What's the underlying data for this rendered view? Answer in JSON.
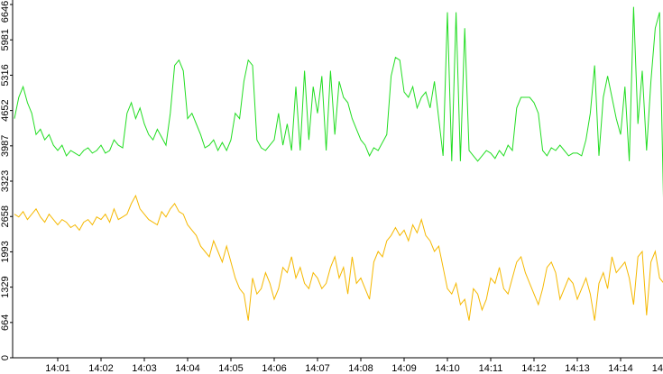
{
  "chart_data": {
    "type": "line",
    "x": [
      0,
      0.1,
      0.2,
      0.3,
      0.4,
      0.5,
      0.6,
      0.7,
      0.8,
      0.9,
      1,
      1.1,
      1.2,
      1.3,
      1.4,
      1.5,
      1.6,
      1.7,
      1.8,
      1.9,
      2,
      2.1,
      2.2,
      2.3,
      2.4,
      2.5,
      2.6,
      2.7,
      2.8,
      2.9,
      3,
      3.1,
      3.2,
      3.3,
      3.4,
      3.5,
      3.6,
      3.7,
      3.8,
      3.9,
      4,
      4.1,
      4.2,
      4.3,
      4.4,
      4.5,
      4.6,
      4.7,
      4.8,
      4.9,
      5,
      5.1,
      5.2,
      5.3,
      5.4,
      5.5,
      5.6,
      5.7,
      5.8,
      5.9,
      6,
      6.1,
      6.2,
      6.3,
      6.4,
      6.5,
      6.6,
      6.7,
      6.8,
      6.9,
      7,
      7.1,
      7.2,
      7.3,
      7.4,
      7.5,
      7.6,
      7.7,
      7.8,
      7.9,
      8,
      8.1,
      8.2,
      8.3,
      8.4,
      8.5,
      8.6,
      8.7,
      8.8,
      8.9,
      9,
      9.1,
      9.2,
      9.3,
      9.4,
      9.5,
      9.6,
      9.7,
      9.8,
      9.9,
      10,
      10.1,
      10.2,
      10.3,
      10.4,
      10.5,
      10.6,
      10.7,
      10.8,
      10.9,
      11,
      11.1,
      11.2,
      11.3,
      11.4,
      11.5,
      11.6,
      11.7,
      11.8,
      11.9,
      12,
      12.1,
      12.2,
      12.3,
      12.4,
      12.5,
      12.6,
      12.7,
      12.8,
      12.9,
      13,
      13.1,
      13.2,
      13.3,
      13.4,
      13.5,
      13.6,
      13.7,
      13.8,
      13.9,
      14,
      14.1,
      14.2,
      14.3,
      14.4,
      14.5,
      14.6,
      14.7,
      14.8,
      14.9,
      15
    ],
    "series": [
      {
        "color": "#22dd22",
        "values": [
          4500,
          4900,
          5100,
          4800,
          4600,
          4200,
          4300,
          4100,
          4200,
          4000,
          3900,
          4000,
          3800,
          3900,
          3850,
          3800,
          3900,
          3950,
          3850,
          3900,
          4000,
          3850,
          3900,
          4100,
          4000,
          3950,
          4600,
          4800,
          4500,
          4700,
          4400,
          4200,
          4100,
          4300,
          4150,
          4000,
          4600,
          5500,
          5600,
          5400,
          4500,
          4600,
          4400,
          4200,
          3950,
          4000,
          4100,
          3900,
          4050,
          3900,
          4100,
          4600,
          4500,
          5200,
          5600,
          5500,
          4100,
          3950,
          3900,
          4000,
          4100,
          4600,
          4000,
          4400,
          3900,
          5100,
          3900,
          5400,
          4100,
          5100,
          4600,
          5300,
          3900,
          5400,
          4200,
          5200,
          4900,
          4800,
          4500,
          4300,
          4100,
          4000,
          3800,
          3950,
          3900,
          4050,
          4200,
          5300,
          5650,
          5600,
          5000,
          4900,
          5100,
          4700,
          4900,
          5000,
          4700,
          5200,
          4500,
          3800,
          6500,
          3700,
          6500,
          3700,
          6200,
          3900,
          3800,
          3700,
          3800,
          3900,
          3850,
          3750,
          3900,
          3800,
          4000,
          3900,
          4700,
          4900,
          4900,
          4900,
          4800,
          4600,
          3900,
          3800,
          3950,
          3900,
          4000,
          3900,
          3800,
          3850,
          3850,
          3800,
          4100,
          4600,
          5500,
          3800,
          4900,
          5300,
          4900,
          4500,
          4200,
          5100,
          3700,
          6600,
          4400,
          5400,
          3900,
          5200,
          6200,
          6500,
          2600
        ]
      },
      {
        "color": "#f5b800",
        "values": [
          2700,
          2650,
          2750,
          2600,
          2700,
          2800,
          2650,
          2550,
          2700,
          2600,
          2500,
          2600,
          2550,
          2450,
          2500,
          2400,
          2550,
          2600,
          2500,
          2650,
          2600,
          2700,
          2550,
          2800,
          2600,
          2650,
          2700,
          2900,
          3050,
          2800,
          2700,
          2600,
          2550,
          2500,
          2750,
          2650,
          2800,
          2900,
          2750,
          2700,
          2500,
          2400,
          2300,
          2100,
          2000,
          1900,
          2200,
          2000,
          1800,
          2100,
          1800,
          1500,
          1300,
          1200,
          700,
          1500,
          1200,
          1300,
          1600,
          1400,
          1100,
          1300,
          1700,
          1600,
          1900,
          1500,
          1700,
          1400,
          1300,
          1600,
          1500,
          1300,
          1400,
          1700,
          1900,
          1500,
          1700,
          1200,
          1900,
          1400,
          1500,
          1300,
          1100,
          1800,
          2000,
          1900,
          2200,
          2300,
          2450,
          2300,
          2400,
          2200,
          2500,
          2350,
          2600,
          2300,
          2200,
          2000,
          2100,
          1700,
          1300,
          1200,
          1400,
          1000,
          1100,
          700,
          1300,
          1200,
          900,
          1100,
          1500,
          1400,
          1700,
          1300,
          1200,
          1500,
          1800,
          1900,
          1600,
          1400,
          1200,
          1000,
          1300,
          1700,
          1800,
          1600,
          1100,
          1300,
          1500,
          1400,
          1100,
          1300,
          1500,
          1200,
          700,
          1400,
          1600,
          1300,
          1900,
          1600,
          1700,
          1800,
          1500,
          1000,
          1900,
          2000,
          800,
          1800,
          2000,
          1500,
          1400
        ]
      }
    ],
    "xlim": [
      0,
      15
    ],
    "xticks": [
      {
        "value": 1,
        "label": "14:01"
      },
      {
        "value": 2,
        "label": "14:02"
      },
      {
        "value": 3,
        "label": "14:03"
      },
      {
        "value": 4,
        "label": "14:04"
      },
      {
        "value": 5,
        "label": "14:05"
      },
      {
        "value": 6,
        "label": "14:06"
      },
      {
        "value": 7,
        "label": "14:07"
      },
      {
        "value": 8,
        "label": "14:08"
      },
      {
        "value": 9,
        "label": "14:09"
      },
      {
        "value": 10,
        "label": "14:10"
      },
      {
        "value": 11,
        "label": "14:11"
      },
      {
        "value": 12,
        "label": "14:12"
      },
      {
        "value": 13,
        "label": "14:13"
      },
      {
        "value": 14,
        "label": "14:14"
      },
      {
        "value": 15,
        "label": "14"
      }
    ],
    "ylim": [
      0,
      6646
    ],
    "yticks": [
      0,
      664,
      1329,
      1993,
      2658,
      3323,
      3987,
      4652,
      5316,
      5981,
      6646
    ]
  }
}
